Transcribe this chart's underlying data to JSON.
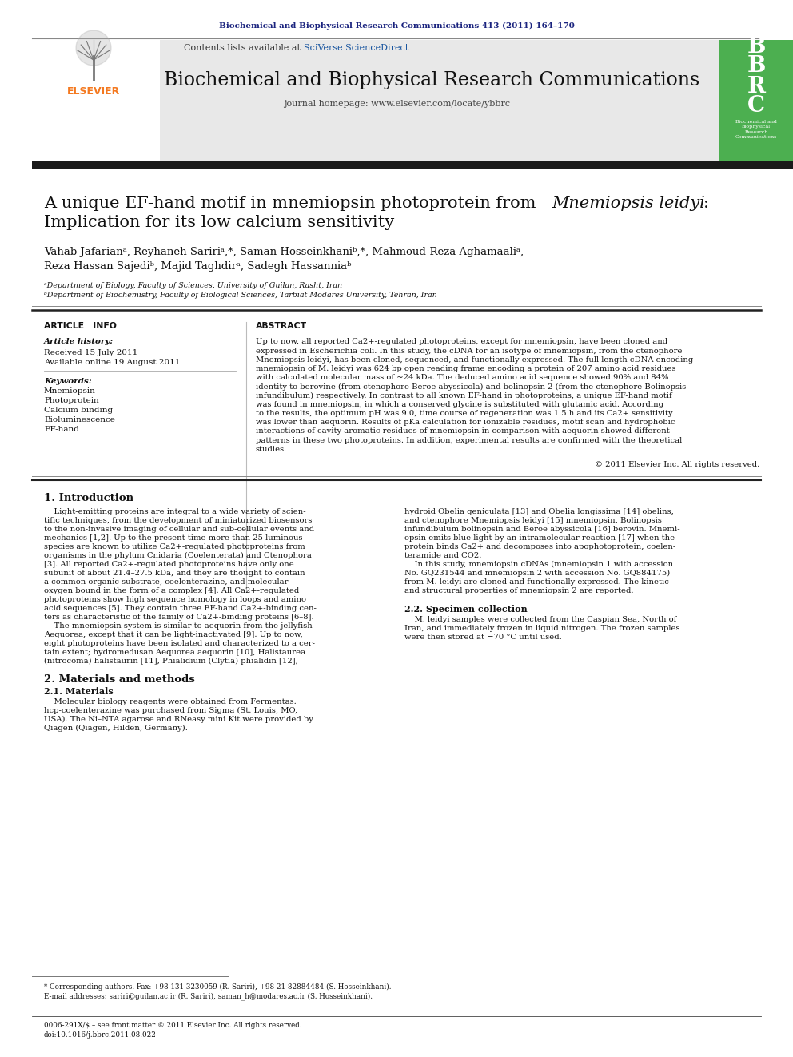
{
  "page_bg": "#ffffff",
  "top_journal_ref": "Biochemical and Biophysical Research Communications 413 (2011) 164–170",
  "top_journal_ref_color": "#1a237e",
  "journal_header_bg": "#e8e8e8",
  "journal_name": "Biochemical and Biophysical Research Communications",
  "journal_url": "journal homepage: www.elsevier.com/locate/ybbrc",
  "contents_text": "Contents lists available at ",
  "sciverse_text": "SciVerse ScienceDirect",
  "sciverse_color": "#1a56a0",
  "black_bar_color": "#1a1a1a",
  "article_info_header": "ARTICLE   INFO",
  "abstract_header": "ABSTRACT",
  "article_history_label": "Article history:",
  "received": "Received 15 July 2011",
  "available": "Available online 19 August 2011",
  "keywords_label": "Keywords:",
  "keywords": [
    "Mnemiopsin",
    "Photoprotein",
    "Calcium binding",
    "Bioluminescence",
    "EF-hand"
  ],
  "copyright": "© 2011 Elsevier Inc. All rights reserved.",
  "intro_header": "1. Introduction",
  "materials_header": "2. Materials and methods",
  "materials_sub": "2.1. Materials",
  "specimen_sub": "2.2. Specimen collection",
  "footnote_star": "* Corresponding authors. Fax: +98 131 3230059 (R. Sariri), +98 21 82884484 (S. Hosseinkhani).",
  "footnote_email": "E-mail addresses: sariri@guilan.ac.ir (R. Sariri), saman_h@modares.ac.ir (S. Hosseinkhani).",
  "bottom_line1": "0006-291X/$ – see front matter © 2011 Elsevier Inc. All rights reserved.",
  "bottom_line2": "doi:10.1016/j.bbrc.2011.08.022",
  "elsevier_orange": "#f47920",
  "bbrc_green": "#4caf50",
  "link_blue": "#1a56a0",
  "abstract_lines": [
    "Up to now, all reported Ca2+-regulated photoproteins, except for mnemiopsin, have been cloned and",
    "expressed in Escherichia coli. In this study, the cDNA for an isotype of mnemiopsin, from the ctenophore",
    "Mnemiopsis leidyi, has been cloned, sequenced, and functionally expressed. The full length cDNA encoding",
    "mnemiopsin of M. leidyi was 624 bp open reading frame encoding a protein of 207 amino acid residues",
    "with calculated molecular mass of ~24 kDa. The deduced amino acid sequence showed 90% and 84%",
    "identity to berovine (from ctenophore Beroe abyssicola) and bolinopsin 2 (from the ctenophore Bolinopsis",
    "infundibulum) respectively. In contrast to all known EF-hand in photoproteins, a unique EF-hand motif",
    "was found in mnemiopsin, in which a conserved glycine is substituted with glutamic acid. According",
    "to the results, the optimum pH was 9.0, time course of regeneration was 1.5 h and its Ca2+ sensitivity",
    "was lower than aequorin. Results of pKa calculation for ionizable residues, motif scan and hydrophobic",
    "interactions of cavity aromatic residues of mnemiopsin in comparison with aequorin showed different",
    "patterns in these two photoproteins. In addition, experimental results are confirmed with the theoretical",
    "studies."
  ],
  "intro_col1_lines": [
    "    Light-emitting proteins are integral to a wide variety of scien-",
    "tific techniques, from the development of miniaturized biosensors",
    "to the non-invasive imaging of cellular and sub-cellular events and",
    "mechanics [1,2]. Up to the present time more than 25 luminous",
    "species are known to utilize Ca2+-regulated photoproteins from",
    "organisms in the phylum Cnidaria (Coelenterata) and Ctenophora",
    "[3]. All reported Ca2+-regulated photoproteins have only one",
    "subunit of about 21.4–27.5 kDa, and they are thought to contain",
    "a common organic substrate, coelenterazine, and molecular",
    "oxygen bound in the form of a complex [4]. All Ca2+-regulated",
    "photoproteins show high sequence homology in loops and amino",
    "acid sequences [5]. They contain three EF-hand Ca2+-binding cen-",
    "ters as characteristic of the family of Ca2+-binding proteins [6–8].",
    "    The mnemiopsin system is similar to aequorin from the jellyfish",
    "Aequorea, except that it can be light-inactivated [9]. Up to now,",
    "eight photoproteins have been isolated and characterized to a cer-",
    "tain extent; hydromedusan Aequorea aequorin [10], Halistaurea",
    "(nitrocoma) halistaurin [11], Phialidium (Clytia) phialidin [12],"
  ],
  "intro_col2_lines": [
    "hydroid Obelia geniculata [13] and Obelia longissima [14] obelins,",
    "and ctenophore Mnemiopsis leidyi [15] mnemiopsin, Bolinopsis",
    "infundibulum bolinopsin and Beroe abyssicola [16] berovin. Mnemi-",
    "opsin emits blue light by an intramolecular reaction [17] when the",
    "protein binds Ca2+ and decomposes into apophotoprotein, coelen-",
    "teramide and CO2.",
    "    In this study, mnemiopsin cDNAs (mnemiopsin 1 with accession",
    "No. GQ231544 and mnemiopsin 2 with accession No. GQ884175)",
    "from M. leidyi are cloned and functionally expressed. The kinetic",
    "and structural properties of mnemiopsin 2 are reported."
  ],
  "mat_lines": [
    "    Molecular biology reagents were obtained from Fermentas.",
    "hcp-coelenterazine was purchased from Sigma (St. Louis, MO,",
    "USA). The Ni–NTA agarose and RNeasy mini Kit were provided by",
    "Qiagen (Qiagen, Hilden, Germany)."
  ],
  "spec_lines": [
    "    M. leidyi samples were collected from the Caspian Sea, North of",
    "Iran, and immediately frozen in liquid nitrogen. The frozen samples",
    "were then stored at −70 °C until used."
  ]
}
